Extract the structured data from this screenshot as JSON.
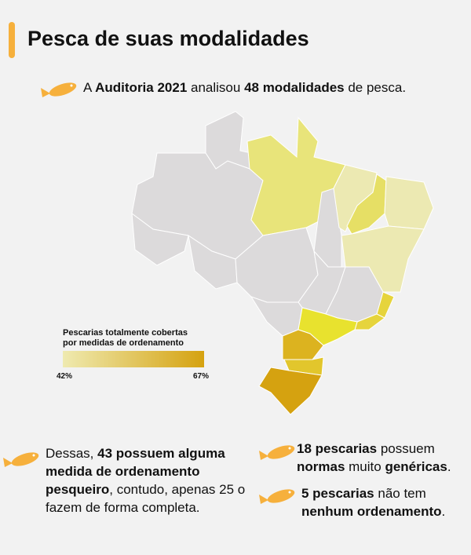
{
  "header": {
    "title": "Pesca de suas modalidades"
  },
  "intro": {
    "parts": [
      "A ",
      "Auditoria 2021",
      " analisou ",
      "48 modalidades",
      " de pesca."
    ]
  },
  "legend": {
    "title": [
      "Pescarias totalmente cobertas",
      "por medidas de ordenamento"
    ],
    "min_label": "42%",
    "max_label": "67%"
  },
  "notes": [
    {
      "parts": [
        "Dessas, ",
        "43 possuem alguma medida de ordenamento pesqueiro",
        ", contudo, apenas 25 o fazem de forma completa."
      ]
    },
    {
      "parts": [
        "18 pescarias",
        " possuem ",
        "normas",
        " muito ",
        "genéricas",
        "."
      ]
    },
    {
      "parts": [
        "5 pescarias",
        " não tem ",
        "nenhum ordenamento",
        "."
      ]
    }
  ]
}
